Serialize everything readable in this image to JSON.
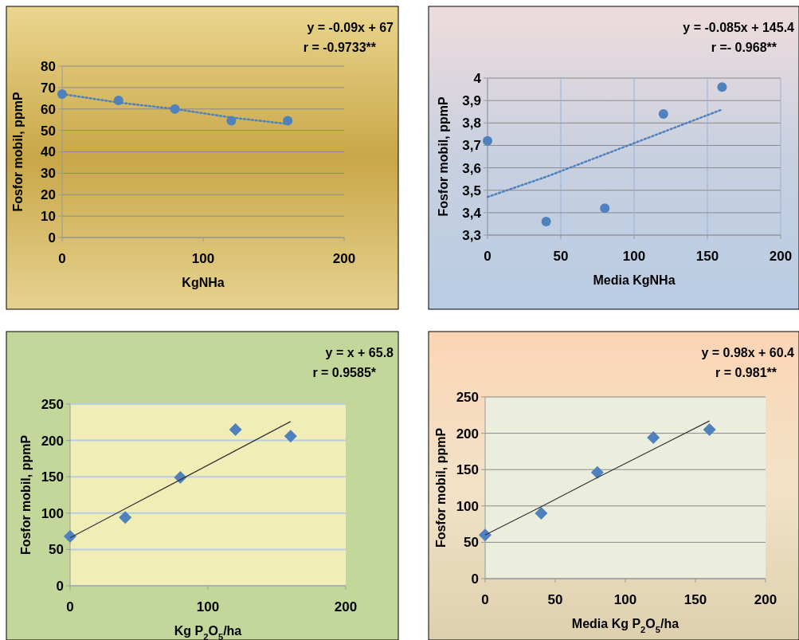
{
  "chart_data": [
    {
      "type": "scatter",
      "xlabel": "KgNHa",
      "ylabel": "Fosfor mobil, ppmP",
      "annotations": [
        "y = -0.09x + 67",
        "r = -0.9733**"
      ],
      "x": [
        0,
        40,
        80,
        120,
        160
      ],
      "xlim": [
        0,
        200
      ],
      "xticks": [
        0,
        100,
        200
      ],
      "ylim": [
        0,
        80
      ],
      "yticks": [
        0,
        10,
        20,
        30,
        40,
        50,
        60,
        70,
        80
      ],
      "grid": "y",
      "series": [
        {
          "color": "#4f81bd",
          "marker": "circle",
          "values": [
            67,
            64,
            60,
            54.5,
            54.5
          ]
        },
        {
          "type": "line",
          "color": "#4f81bd",
          "marker": "none",
          "line_style": "dotted",
          "values": [
            67,
            63,
            60,
            56,
            53
          ]
        }
      ]
    },
    {
      "type": "scatter",
      "xlabel": "Media KgNHa",
      "ylabel": "Fosfor mobil, ppmP",
      "annotations": [
        "y = -0.085x + 145.4",
        "r =- 0.968**"
      ],
      "x": [
        0,
        40,
        80,
        120,
        160
      ],
      "xlim": [
        0,
        200
      ],
      "xticks": [
        0,
        50,
        100,
        150,
        200
      ],
      "ylim": [
        3.3,
        4
      ],
      "yticks": [
        {
          "value": 3.3,
          "label": "3,3"
        },
        {
          "value": 3.4,
          "label": "3,4"
        },
        {
          "value": 3.5,
          "label": "3,5"
        },
        {
          "value": 3.6,
          "label": "3,6"
        },
        {
          "value": 3.7,
          "label": "3,7"
        },
        {
          "value": 3.8,
          "label": "3,8"
        },
        {
          "value": 3.9,
          "label": "3,9"
        },
        4
      ],
      "grid": true,
      "series": [
        {
          "color": "#4f81bd",
          "marker": "circle",
          "values": [
            3.72,
            3.36,
            3.42,
            3.84,
            3.96
          ]
        },
        {
          "type": "line",
          "color": "#4f81bd",
          "marker": "none",
          "line_style": "dotted",
          "values": [
            3.47,
            3.56,
            3.66,
            3.76,
            3.86
          ]
        }
      ]
    },
    {
      "type": "scatter",
      "xlabel": "Kg P$_{2}$O$_{5}$/ha",
      "ylabel": "Fosfor mobil, ppmP",
      "annotations": [
        "y = x + 65.8",
        "r = 0.9585*"
      ],
      "x": [
        0,
        40,
        80,
        120,
        160
      ],
      "xlim": [
        0,
        200
      ],
      "xticks": [
        0,
        100,
        200
      ],
      "ylim": [
        0,
        250
      ],
      "yticks": [
        0,
        50,
        100,
        150,
        200,
        250
      ],
      "grid": "y",
      "series": [
        {
          "color": "#4f81bd",
          "marker": "diamond",
          "values": [
            68,
            94,
            149,
            215,
            206
          ]
        },
        {
          "type": "line",
          "color": "#333333",
          "marker": "none",
          "line_style": "solid",
          "values": [
            66,
            106,
            146,
            186,
            226
          ]
        }
      ]
    },
    {
      "type": "scatter",
      "xlabel": "Media Kg P$_{2}$O$_{5}$/ha",
      "ylabel": "Fosfor mobil, ppmP",
      "annotations": [
        "y = 0.98x + 60.4",
        "r = 0.981**"
      ],
      "x": [
        0,
        40,
        80,
        120,
        160
      ],
      "xlim": [
        0,
        200
      ],
      "xticks": [
        0,
        50,
        100,
        150,
        200
      ],
      "ylim": [
        0,
        250
      ],
      "yticks": [
        0,
        50,
        100,
        150,
        200,
        250
      ],
      "grid": "y",
      "series": [
        {
          "color": "#4f81bd",
          "marker": "diamond",
          "values": [
            60,
            90,
            146,
            194,
            205
          ]
        },
        {
          "type": "line",
          "color": "#333333",
          "marker": "none",
          "line_style": "solid",
          "values": [
            60,
            99,
            139,
            178,
            217
          ]
        }
      ]
    }
  ]
}
